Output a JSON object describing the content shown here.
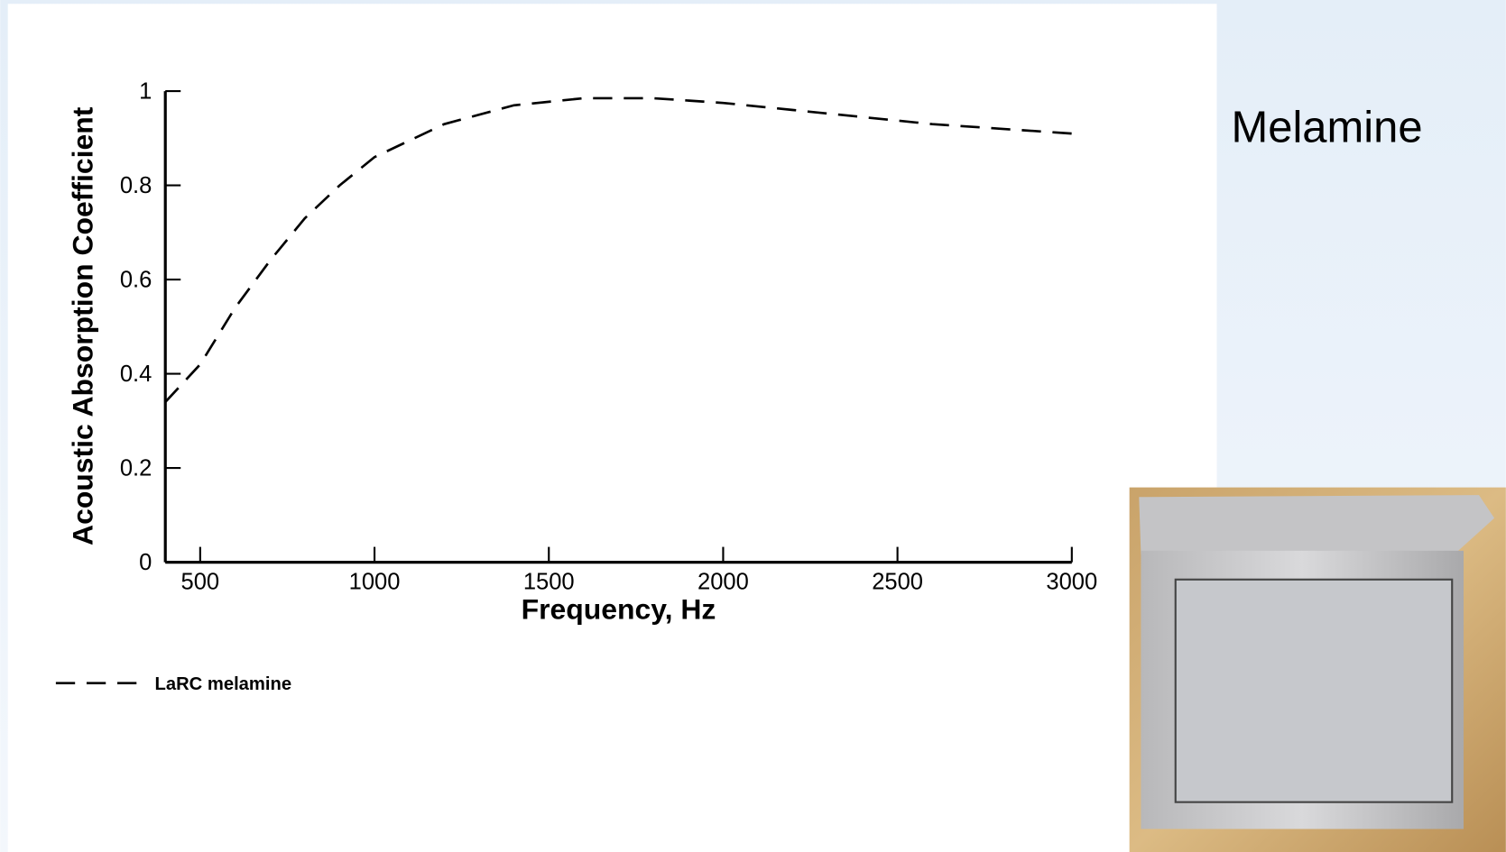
{
  "slide": {
    "title": "Melamine"
  },
  "chart_data": {
    "type": "line",
    "x_label": "Frequency, Hz",
    "y_label": "Acoustic Absorption Coefficient",
    "x": [
      400,
      500,
      600,
      700,
      800,
      900,
      1000,
      1200,
      1400,
      1600,
      1800,
      2000,
      2200,
      2400,
      2600,
      2800,
      3000
    ],
    "series": [
      {
        "name": "LaRC melamine",
        "color": "#000000",
        "dash": true,
        "values": [
          0.34,
          0.42,
          0.54,
          0.64,
          0.73,
          0.8,
          0.86,
          0.93,
          0.97,
          0.985,
          0.985,
          0.975,
          0.96,
          0.945,
          0.93,
          0.92,
          0.91
        ]
      }
    ],
    "xlim": [
      400,
      3000
    ],
    "xticks": [
      500,
      1000,
      1500,
      2000,
      2500,
      3000
    ],
    "ylim": [
      0,
      1
    ],
    "yticks": [
      0,
      0.2,
      0.4,
      0.6,
      0.8,
      1
    ],
    "grid": false,
    "legend": "bottom-left"
  }
}
